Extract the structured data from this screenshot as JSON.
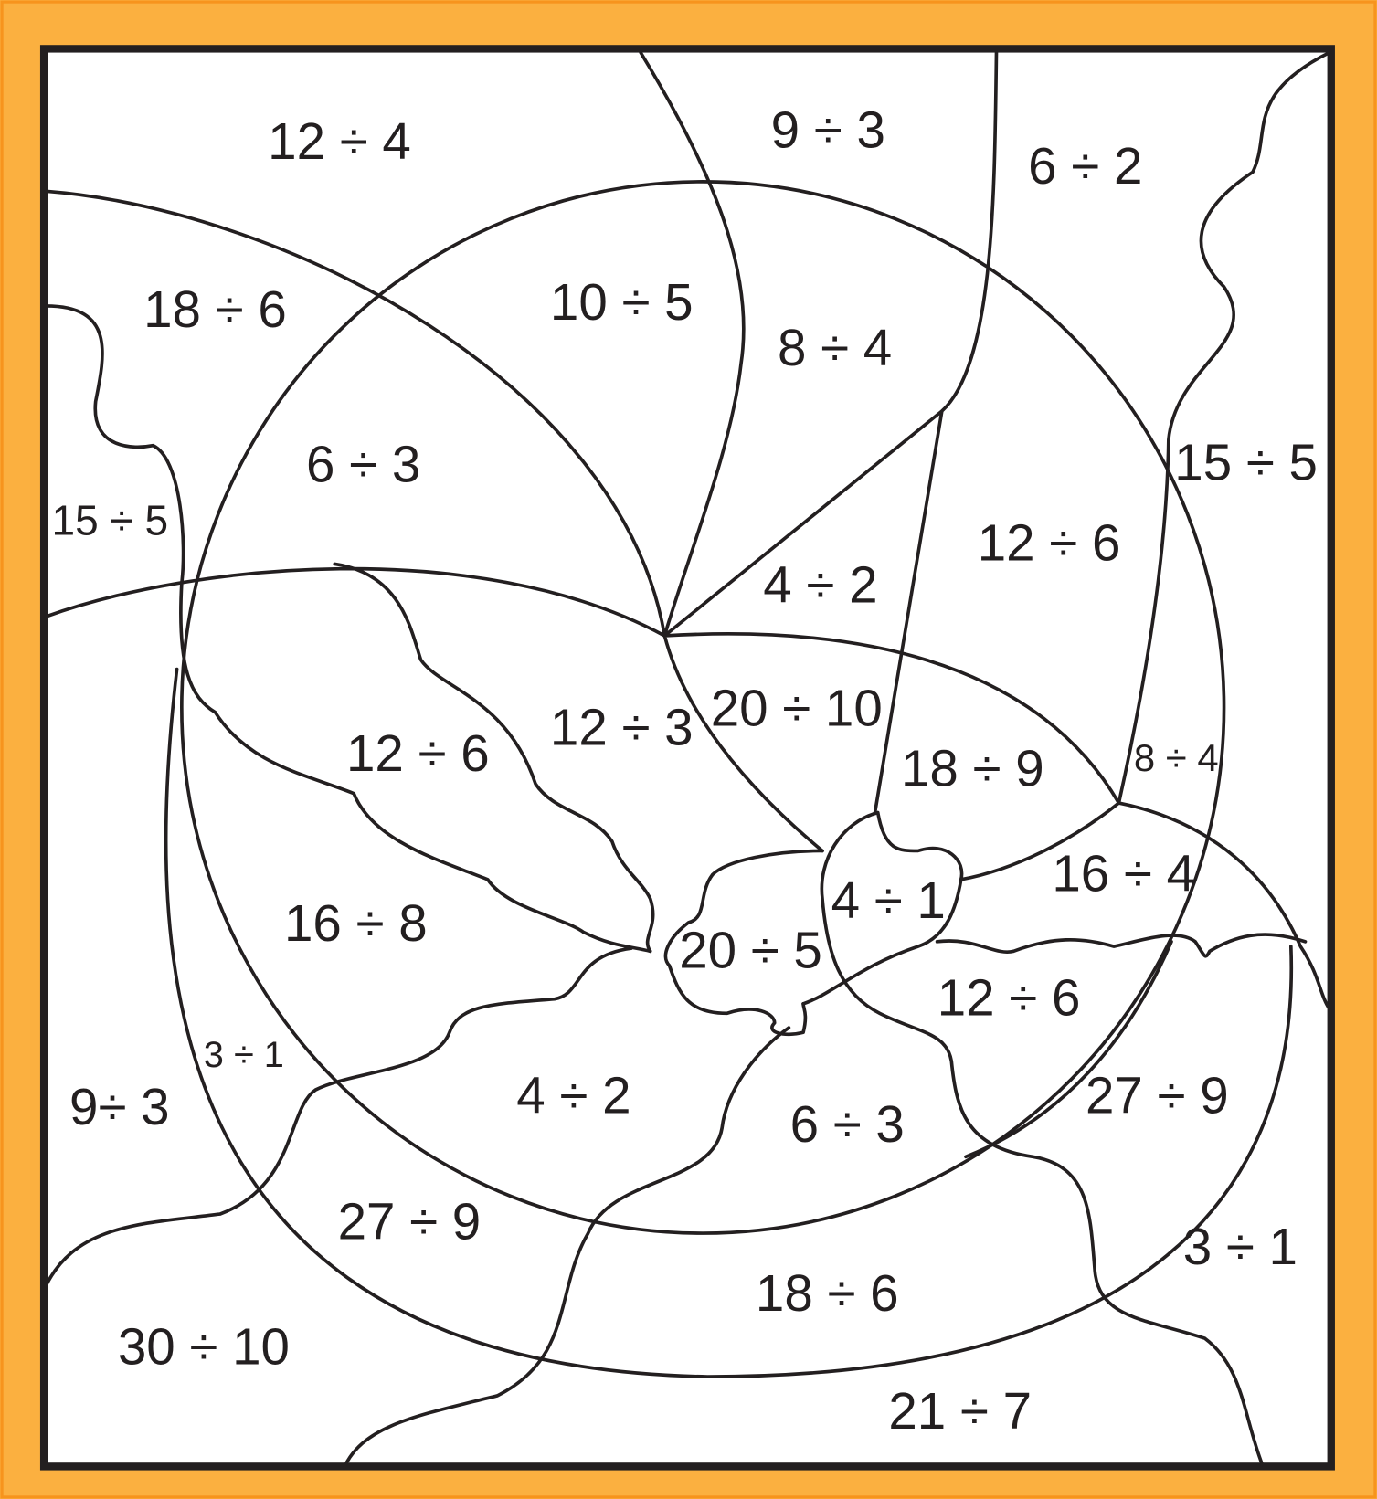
{
  "labels": [
    "12 ÷ 4",
    "9 ÷ 3",
    "6 ÷ 2",
    "18 ÷ 6",
    "10 ÷ 5",
    "8 ÷ 4",
    "6 ÷ 3",
    "15 ÷ 5",
    "15 ÷ 5",
    "12 ÷ 6",
    "4 ÷ 2",
    "20 ÷ 10",
    "12 ÷ 3",
    "12 ÷ 6",
    "18 ÷ 9",
    "8 ÷ 4",
    "16 ÷ 4",
    "4 ÷ 1",
    "16 ÷ 8",
    "20 ÷ 5",
    "12 ÷ 6",
    "3 ÷ 1",
    "9÷ 3",
    "4 ÷ 2",
    "6 ÷ 3",
    "27 ÷ 9",
    "27 ÷ 9",
    "3 ÷ 1",
    "18 ÷ 6",
    "30 ÷ 10",
    "21 ÷ 7"
  ]
}
